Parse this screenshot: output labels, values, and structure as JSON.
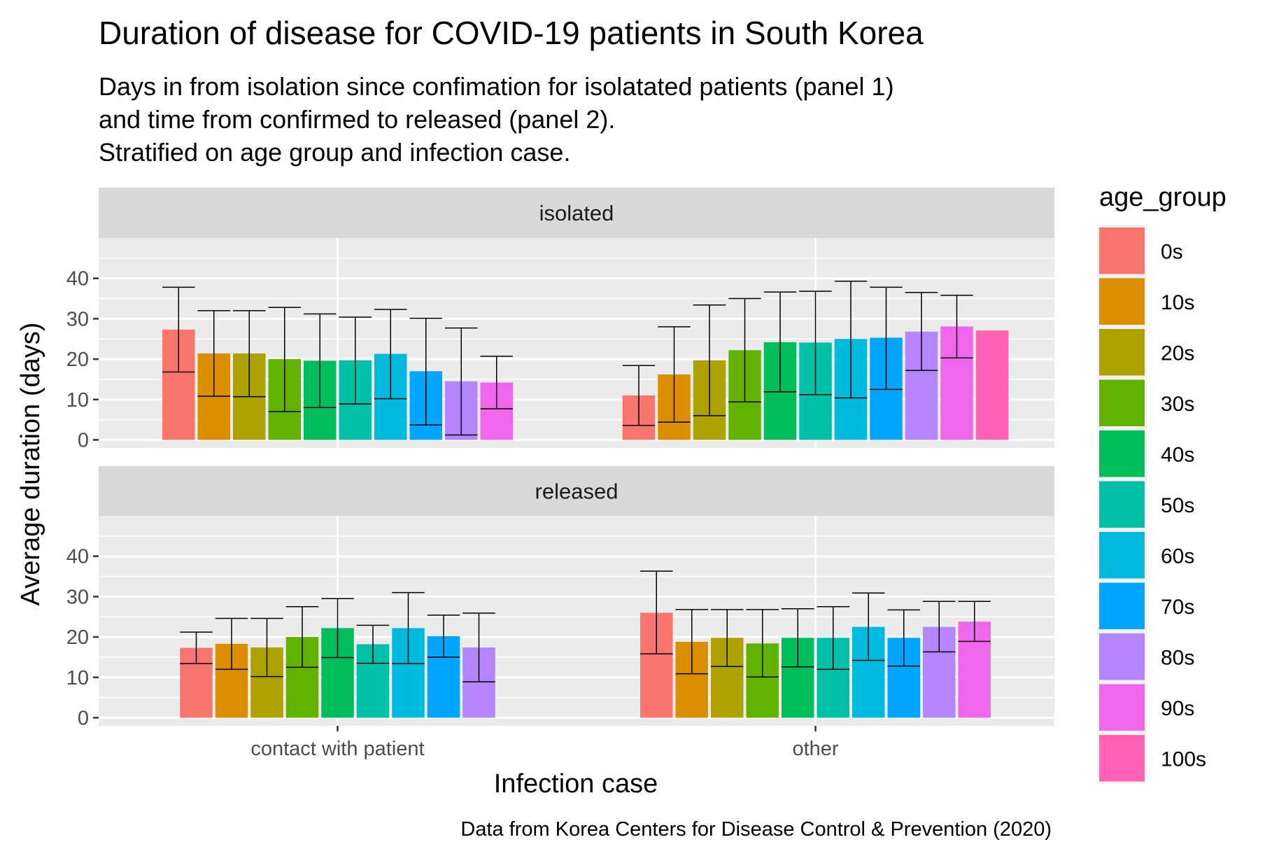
{
  "chart_data": {
    "type": "bar",
    "title": "Duration of disease for COVID-19 patients in South Korea",
    "subtitle": [
      "Days in from isolation since confimation for isolatated patients (panel 1)",
      "and time from confirmed to released (panel 2).",
      "Stratified on age group and infection case."
    ],
    "caption": "Data from Korea Centers for Disease Control & Prevention (2020)",
    "xlabel": "Infection case",
    "ylabel": "Average duration (days)",
    "categories": [
      "contact with patient",
      "other"
    ],
    "ylim": [
      -2,
      50
    ],
    "yticks": [
      0,
      10,
      20,
      30,
      40
    ],
    "grid": true,
    "legend": {
      "title": "age_group",
      "position": "right",
      "entries": [
        {
          "label": "0s",
          "color": "#F8766D"
        },
        {
          "label": "10s",
          "color": "#DB8E00"
        },
        {
          "label": "20s",
          "color": "#AEA200"
        },
        {
          "label": "30s",
          "color": "#64B200"
        },
        {
          "label": "40s",
          "color": "#00BD5C"
        },
        {
          "label": "50s",
          "color": "#00C1A7"
        },
        {
          "label": "60s",
          "color": "#00BADE"
        },
        {
          "label": "70s",
          "color": "#00A6FF"
        },
        {
          "label": "80s",
          "color": "#B385FF"
        },
        {
          "label": "90s",
          "color": "#EF67EB"
        },
        {
          "label": "100s",
          "color": "#FF63B6"
        }
      ]
    },
    "panels": [
      {
        "label": "isolated",
        "groups": [
          {
            "category": "contact with patient",
            "bars": [
              {
                "age_group": "0s",
                "value": 27.3,
                "err_low": 16.8,
                "err_high": 37.8
              },
              {
                "age_group": "10s",
                "value": 21.4,
                "err_low": 10.8,
                "err_high": 32.0
              },
              {
                "age_group": "20s",
                "value": 21.4,
                "err_low": 10.7,
                "err_high": 32.0
              },
              {
                "age_group": "30s",
                "value": 20.0,
                "err_low": 7.0,
                "err_high": 32.8
              },
              {
                "age_group": "40s",
                "value": 19.6,
                "err_low": 8.0,
                "err_high": 31.2
              },
              {
                "age_group": "50s",
                "value": 19.7,
                "err_low": 8.9,
                "err_high": 30.4
              },
              {
                "age_group": "60s",
                "value": 21.3,
                "err_low": 10.2,
                "err_high": 32.3
              },
              {
                "age_group": "70s",
                "value": 17.0,
                "err_low": 3.7,
                "err_high": 30.1
              },
              {
                "age_group": "80s",
                "value": 14.5,
                "err_low": 1.2,
                "err_high": 27.7
              },
              {
                "age_group": "90s",
                "value": 14.2,
                "err_low": 7.7,
                "err_high": 20.7
              }
            ]
          },
          {
            "category": "other",
            "bars": [
              {
                "age_group": "0s",
                "value": 11.0,
                "err_low": 3.6,
                "err_high": 18.4
              },
              {
                "age_group": "10s",
                "value": 16.2,
                "err_low": 4.4,
                "err_high": 28.0
              },
              {
                "age_group": "20s",
                "value": 19.7,
                "err_low": 6.0,
                "err_high": 33.4
              },
              {
                "age_group": "30s",
                "value": 22.2,
                "err_low": 9.4,
                "err_high": 35.0
              },
              {
                "age_group": "40s",
                "value": 24.2,
                "err_low": 11.9,
                "err_high": 36.6
              },
              {
                "age_group": "50s",
                "value": 24.1,
                "err_low": 11.2,
                "err_high": 36.8
              },
              {
                "age_group": "60s",
                "value": 25.0,
                "err_low": 10.4,
                "err_high": 39.3
              },
              {
                "age_group": "70s",
                "value": 25.3,
                "err_low": 12.5,
                "err_high": 37.8
              },
              {
                "age_group": "80s",
                "value": 26.8,
                "err_low": 17.2,
                "err_high": 36.5
              },
              {
                "age_group": "90s",
                "value": 28.1,
                "err_low": 20.3,
                "err_high": 35.8
              },
              {
                "age_group": "100s",
                "value": 27.1
              }
            ]
          }
        ]
      },
      {
        "label": "released",
        "groups": [
          {
            "category": "contact with patient",
            "bars": [
              {
                "age_group": "0s",
                "value": 17.3,
                "err_low": 13.4,
                "err_high": 21.2
              },
              {
                "age_group": "10s",
                "value": 18.3,
                "err_low": 12.0,
                "err_high": 24.6
              },
              {
                "age_group": "20s",
                "value": 17.4,
                "err_low": 10.2,
                "err_high": 24.6
              },
              {
                "age_group": "30s",
                "value": 20.0,
                "err_low": 12.5,
                "err_high": 27.5
              },
              {
                "age_group": "40s",
                "value": 22.2,
                "err_low": 14.9,
                "err_high": 29.5
              },
              {
                "age_group": "50s",
                "value": 18.2,
                "err_low": 13.5,
                "err_high": 22.9
              },
              {
                "age_group": "60s",
                "value": 22.2,
                "err_low": 13.4,
                "err_high": 31.0
              },
              {
                "age_group": "70s",
                "value": 20.2,
                "err_low": 15.0,
                "err_high": 25.4
              },
              {
                "age_group": "80s",
                "value": 17.4,
                "err_low": 8.9,
                "err_high": 25.9
              }
            ]
          },
          {
            "category": "other",
            "bars": [
              {
                "age_group": "0s",
                "value": 26.0,
                "err_low": 15.8,
                "err_high": 36.3
              },
              {
                "age_group": "10s",
                "value": 18.8,
                "err_low": 10.9,
                "err_high": 26.8
              },
              {
                "age_group": "20s",
                "value": 19.8,
                "err_low": 12.7,
                "err_high": 26.8
              },
              {
                "age_group": "30s",
                "value": 18.4,
                "err_low": 10.1,
                "err_high": 26.8
              },
              {
                "age_group": "40s",
                "value": 19.8,
                "err_low": 12.6,
                "err_high": 27.0
              },
              {
                "age_group": "50s",
                "value": 19.8,
                "err_low": 12.0,
                "err_high": 27.5
              },
              {
                "age_group": "60s",
                "value": 22.5,
                "err_low": 14.2,
                "err_high": 30.9
              },
              {
                "age_group": "70s",
                "value": 19.8,
                "err_low": 12.8,
                "err_high": 26.7
              },
              {
                "age_group": "80s",
                "value": 22.5,
                "err_low": 16.3,
                "err_high": 28.8
              },
              {
                "age_group": "90s",
                "value": 23.8,
                "err_low": 18.9,
                "err_high": 28.8
              }
            ]
          }
        ]
      }
    ]
  }
}
